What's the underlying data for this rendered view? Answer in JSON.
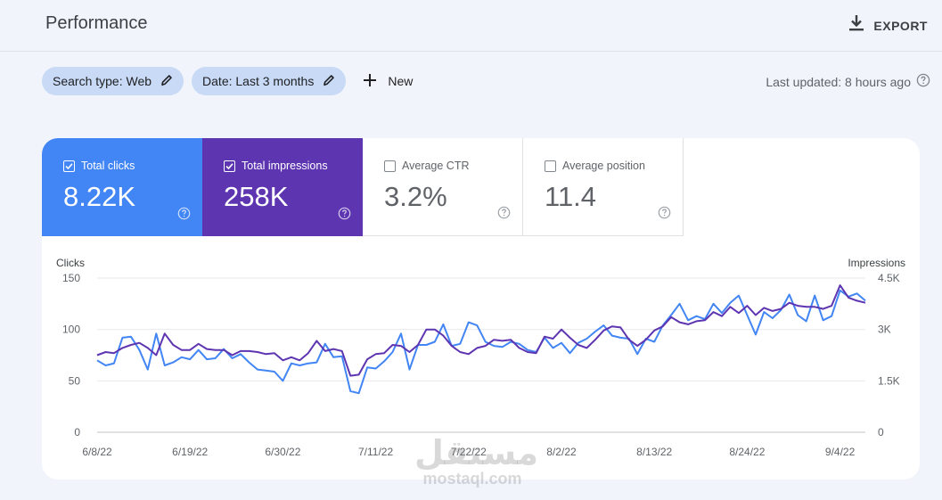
{
  "header": {
    "title": "Performance",
    "export_label": "EXPORT"
  },
  "filters": {
    "chips": [
      {
        "label": "Search type: Web"
      },
      {
        "label": "Date: Last 3 months"
      }
    ],
    "new_label": "New",
    "last_updated": "Last updated: 8 hours ago"
  },
  "metrics": [
    {
      "label": "Total clicks",
      "value": "8.22K",
      "checked": true,
      "color": "#4285f4"
    },
    {
      "label": "Total impressions",
      "value": "258K",
      "checked": true,
      "color": "#5e35b1"
    },
    {
      "label": "Average CTR",
      "value": "3.2%",
      "checked": false
    },
    {
      "label": "Average position",
      "value": "11.4",
      "checked": false
    }
  ],
  "chart_data": {
    "type": "line",
    "left_axis": {
      "title": "Clicks",
      "ticks": [
        "0",
        "50",
        "100",
        "150"
      ],
      "max": 150
    },
    "right_axis": {
      "title": "Impressions",
      "ticks": [
        "0",
        "1.5K",
        "3K",
        "4.5K"
      ],
      "max": 4500
    },
    "x_labels": [
      "6/8/22",
      "6/19/22",
      "6/30/22",
      "7/11/22",
      "7/22/22",
      "8/2/22",
      "8/13/22",
      "8/24/22",
      "9/4/22"
    ],
    "grid": true,
    "series": [
      {
        "name": "Total clicks",
        "axis": "left",
        "color": "#4285f4",
        "values": [
          70,
          65,
          67,
          92,
          93,
          80,
          61,
          96,
          65,
          68,
          73,
          71,
          80,
          71,
          72,
          81,
          72,
          76,
          68,
          61,
          60,
          59,
          50,
          67,
          65,
          67,
          68,
          86,
          73,
          74,
          40,
          38,
          63,
          62,
          69,
          78,
          96,
          61,
          85,
          85,
          88,
          105,
          84,
          86,
          107,
          104,
          88,
          84,
          83,
          88,
          86,
          80,
          78,
          92,
          82,
          87,
          77,
          87,
          91,
          98,
          104,
          94,
          92,
          91,
          76,
          91,
          88,
          104,
          114,
          125,
          109,
          113,
          110,
          125,
          116,
          126,
          133,
          114,
          95,
          117,
          111,
          119,
          134,
          114,
          108,
          133,
          109,
          113,
          138,
          132,
          135,
          128
        ]
      },
      {
        "name": "Total impressions",
        "axis": "left",
        "color": "#5e35b1",
        "values": [
          75,
          78,
          77,
          82,
          85,
          87,
          82,
          75,
          96,
          85,
          80,
          80,
          86,
          81,
          80,
          80,
          75,
          79,
          79,
          78,
          76,
          77,
          70,
          73,
          70,
          77,
          89,
          79,
          81,
          79,
          55,
          56,
          71,
          76,
          77,
          85,
          84,
          78,
          85,
          100,
          100,
          94,
          84,
          78,
          76,
          82,
          84,
          90,
          89,
          90,
          82,
          78,
          77,
          93,
          91,
          100,
          92,
          85,
          82,
          90,
          99,
          103,
          102,
          90,
          84,
          90,
          99,
          103,
          112,
          107,
          105,
          108,
          109,
          117,
          113,
          122,
          116,
          123,
          114,
          121,
          118,
          120,
          126,
          123,
          122,
          122,
          120,
          123,
          143,
          131,
          128,
          126
        ]
      }
    ]
  }
}
